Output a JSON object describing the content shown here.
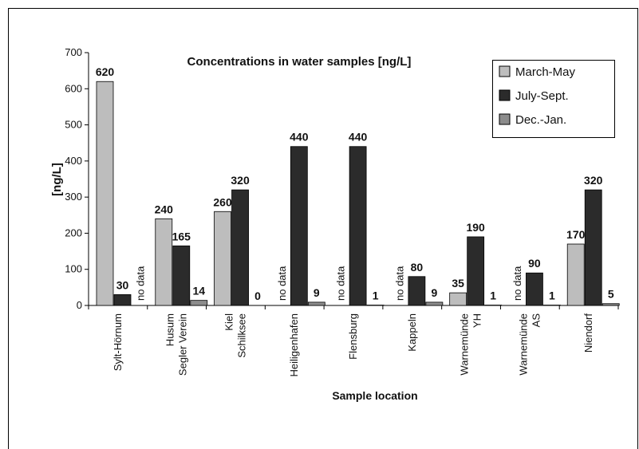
{
  "chart_data": {
    "type": "bar",
    "title": "Concentrations in water samples [ng/L]",
    "ylabel": "[ng/L]",
    "xlabel": "Sample location",
    "categories": [
      "Sylt-Hörnum",
      "Husum Segler Verein",
      "Kiel Schilksee",
      "Heiligenhafen",
      "Flensburg",
      "Kappeln",
      "Warnemünde YH",
      "Warnemünde AS",
      "Niendorf"
    ],
    "series": [
      {
        "name": "March-May",
        "color": "#bdbdbd",
        "values": [
          620,
          240,
          260,
          null,
          null,
          null,
          35,
          null,
          170
        ],
        "value_labels": [
          null,
          null,
          null,
          "no data",
          "no data",
          "no data",
          null,
          "no data",
          null
        ]
      },
      {
        "name": "July-Sept.",
        "color": "#2b2b2b",
        "values": [
          30,
          165,
          320,
          440,
          440,
          80,
          190,
          90,
          320
        ]
      },
      {
        "name": "Dec.-Jan.",
        "color": "#8c8c8c",
        "values": [
          null,
          14,
          0,
          9,
          1,
          9,
          1,
          1,
          5
        ],
        "value_labels": [
          "no data",
          null,
          null,
          null,
          null,
          null,
          null,
          null,
          null
        ]
      }
    ],
    "ylim": [
      0,
      700
    ],
    "yticks": [
      0,
      100,
      200,
      300,
      400,
      500,
      600,
      700
    ],
    "legend": "upper right"
  }
}
